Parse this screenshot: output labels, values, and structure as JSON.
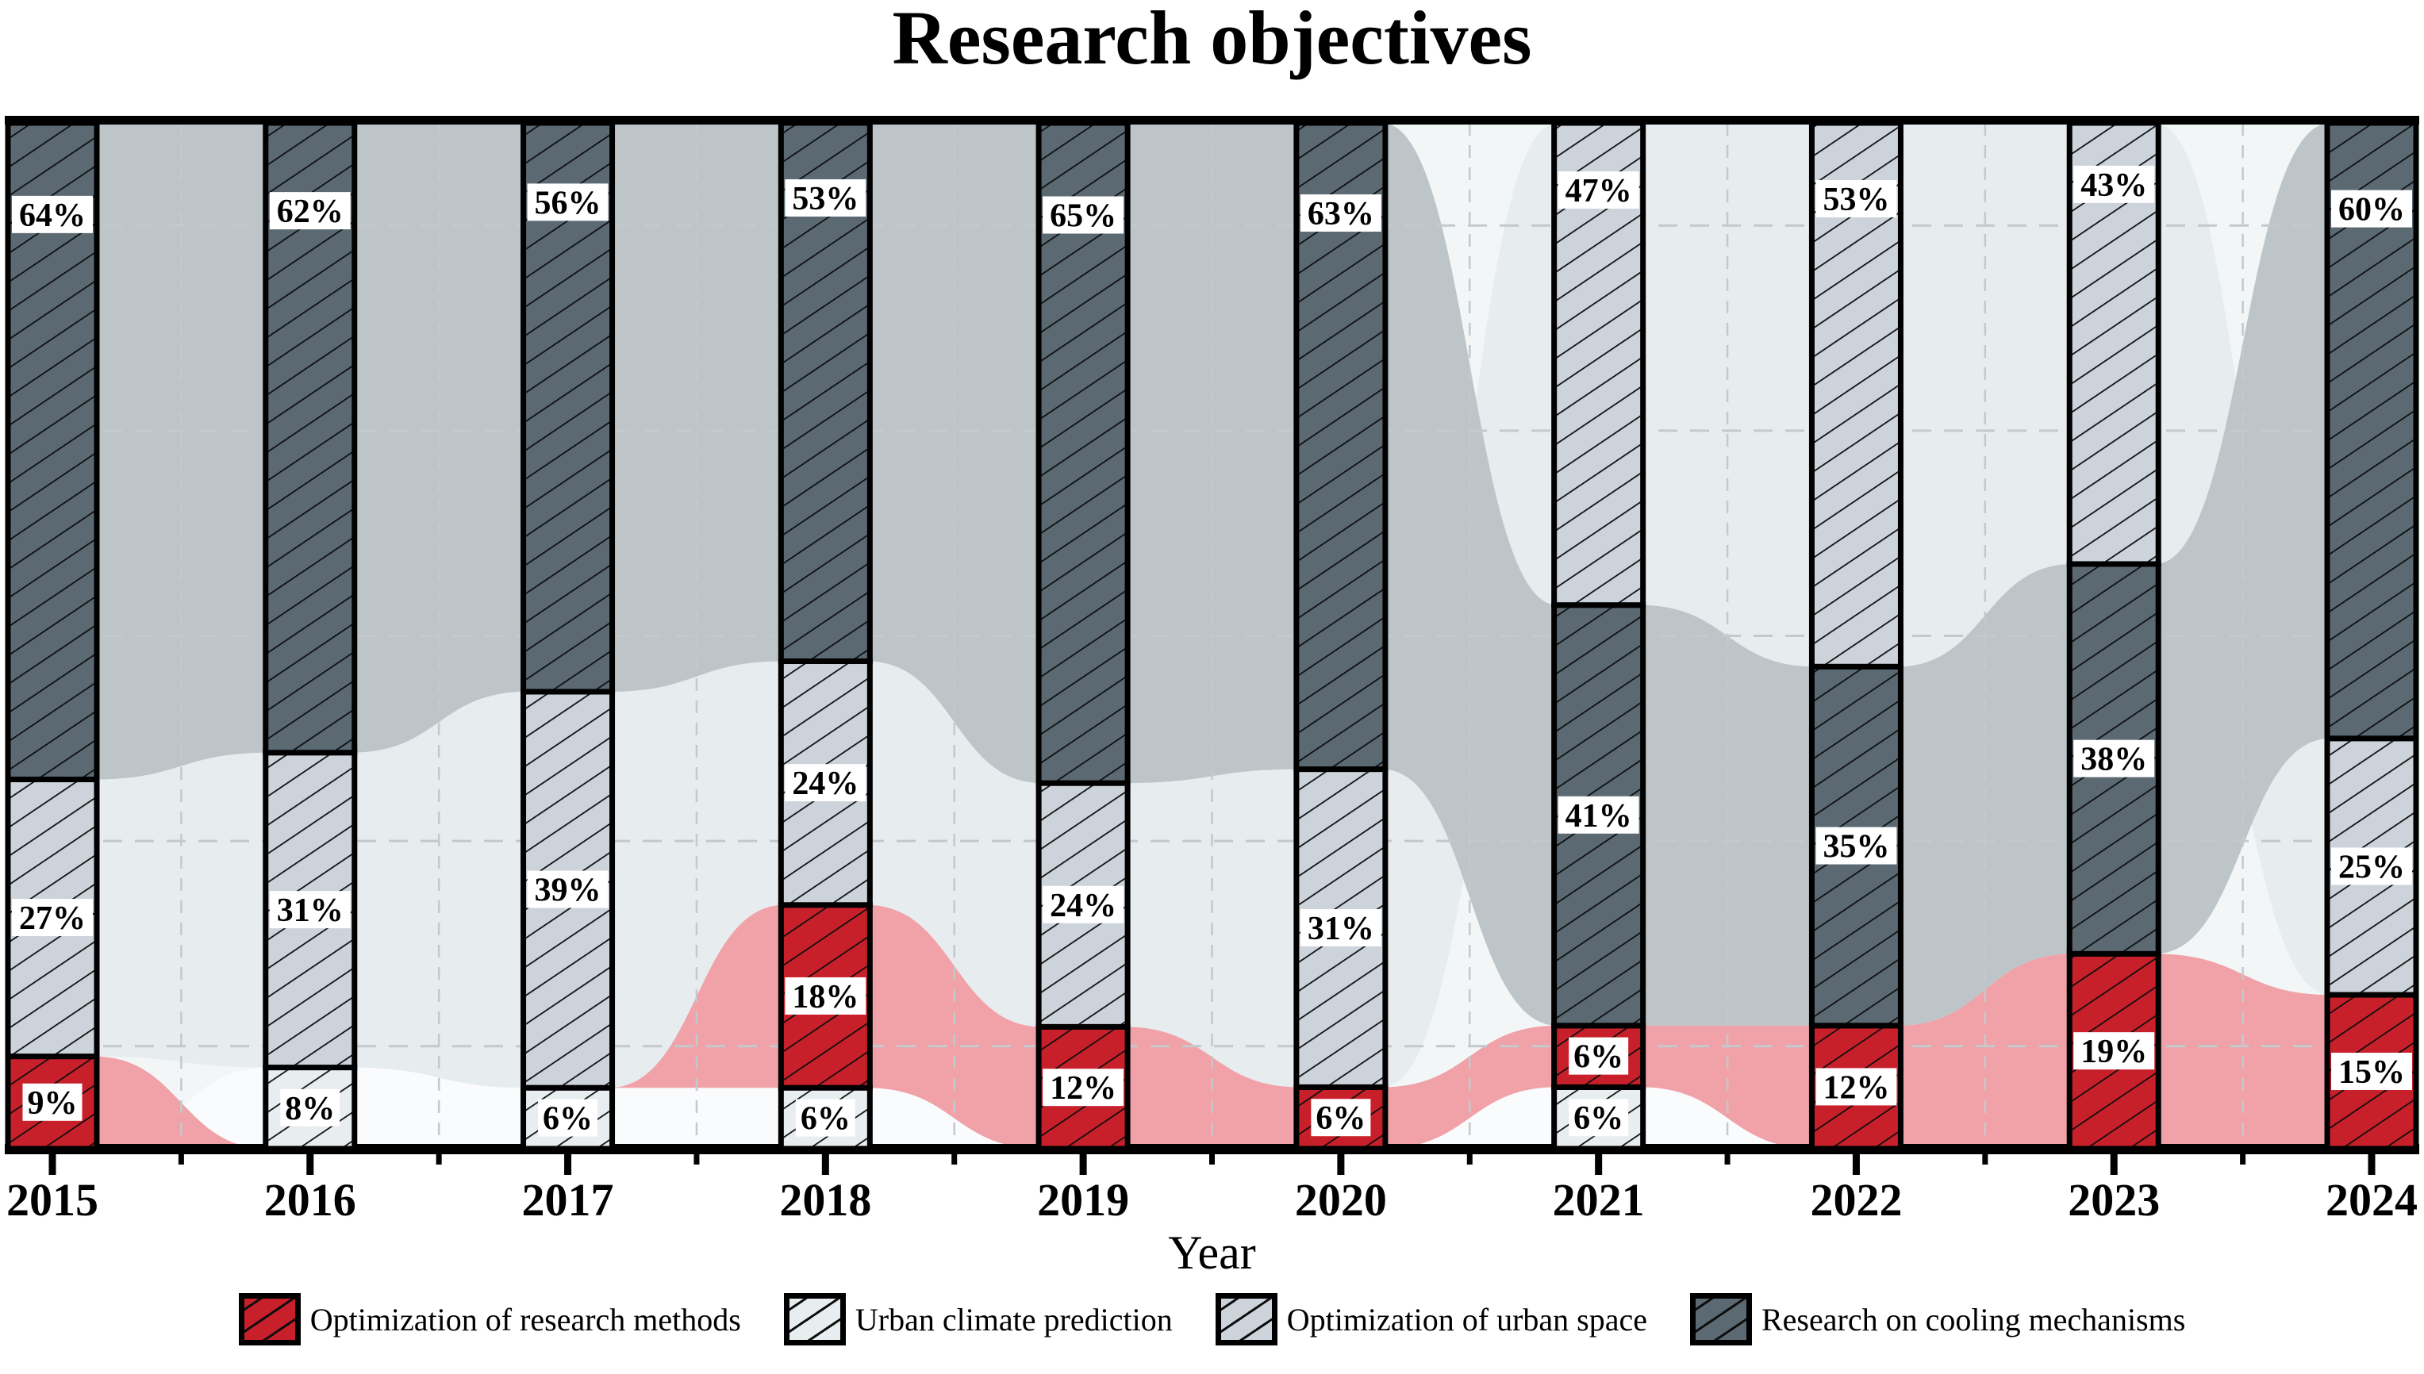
{
  "chart_data": {
    "type": "bar",
    "subtype": "stacked-percentage-with-alluvial-flows",
    "title": "Research objectives",
    "xlabel": "Year",
    "ylim": [
      0,
      100
    ],
    "value_suffix": "%",
    "stack_order": "ascending value from bottom (ties: Urban climate prediction below Optimization of research methods)",
    "legend_position": "bottom",
    "grid": {
      "horizontal_percent_lines": [
        10,
        30,
        50,
        70,
        90
      ],
      "vertical_lines": "dashed line centered in each gap between year columns",
      "style": "dashed"
    },
    "categories": [
      "2015",
      "2016",
      "2017",
      "2018",
      "2019",
      "2020",
      "2021",
      "2022",
      "2023",
      "2024"
    ],
    "series": [
      {
        "name": "Optimization of research methods",
        "bar_color": "#c8202a",
        "flow_color": "#f0a2a8",
        "hatched": true,
        "values": [
          9,
          0,
          0,
          18,
          12,
          6,
          6,
          12,
          19,
          15
        ]
      },
      {
        "name": "Urban climate prediction",
        "bar_color": "#e8edf0",
        "flow_color": "#f9fbfc",
        "hatched": true,
        "values": [
          0,
          8,
          6,
          6,
          0,
          0,
          6,
          0,
          0,
          0
        ]
      },
      {
        "name": "Optimization of urban space",
        "bar_color": "#ccd3da",
        "flow_color": "#e7ecef",
        "hatched": true,
        "values": [
          27,
          31,
          39,
          24,
          24,
          31,
          47,
          53,
          43,
          25
        ]
      },
      {
        "name": "Research on cooling mechanisms",
        "bar_color": "#5b6973",
        "flow_color": "#bec5c9",
        "hatched": true,
        "values": [
          64,
          62,
          56,
          53,
          65,
          63,
          41,
          35,
          38,
          60
        ]
      }
    ],
    "colors": {
      "plot_background": "#f3f6f7",
      "grid_line": "#c3c9cc",
      "axis_and_borders": "#000000",
      "hatch_line": "#0d0d0d",
      "label_box_background": "#ffffff",
      "label_text": "#000000"
    }
  }
}
